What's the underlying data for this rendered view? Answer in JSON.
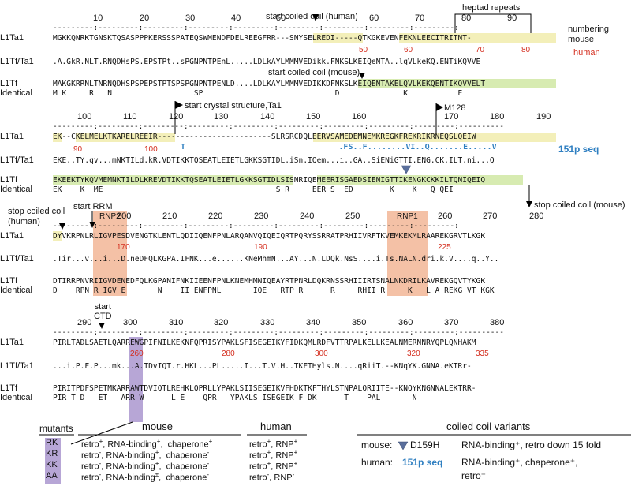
{
  "blocks": [
    {
      "ruler_numbers": [
        "10",
        "20",
        "30",
        "40",
        "50",
        "60",
        "70",
        "80",
        "90"
      ],
      "ruler_line": "---------:---------:---------:---------:---------:---------:---------:---------:---------:",
      "numbering_mouse": "numbering\nmouse",
      "human_label": "human",
      "rows": [
        {
          "label": "L1Ta1",
          "seq": "MGKKQNRKTGNSKTQSASPPPKERSSSPATEQSWMENDFDELREEGFRR---SNYSELREDI-----QTKGKEVENFEKNLEECITRITNT-"
        },
        {
          "label": "L1Tf/Ta1",
          "seq": ".A.GkR.NLT.RNQDHsPS.EPSTPt..sPGNPNTPEnL.....LDLkAYLMMMVEDikk.FNKSLKEIQeNTA..lqVLkeKQ.ENTiKQVVE"
        },
        {
          "label": "L1Tf",
          "seq": "MAKGKRRNLTNRNQDHSPSPEPSTPTSPSPGNPNTPENLD....LDLKAYLMMMVEDIKKDFNKSLKEIQENTAKELQVLKEKQENTIKQVVELT"
        },
        {
          "label": "Identical",
          "seq": "M K     R   N                  SP                             D              K           E"
        }
      ],
      "red_numbers": [
        "50",
        "60",
        "70",
        "80"
      ],
      "annotations": {
        "coil_human": "start coiled coil (human)",
        "coil_mouse": "start coiled coil (mouse)",
        "heptad": "heptad repeats"
      }
    },
    {
      "ruler_numbers": [
        "100",
        "110",
        "120",
        "130",
        "140",
        "150",
        "160",
        "170",
        "180",
        "190"
      ],
      "ruler_line": "---------:---------:---------:---------:---------:---------:---------:---------:---------:----------",
      "rows": [
        {
          "label": "L1Ta1",
          "seq": "EK--CKELMELKTKARELREEIR-------------------------SLRSRCDQLEERVSAMEDEMNEMKREGKFREKRIKRNEQSLQEIW"
        },
        {
          "label": "L1Tf/Ta1",
          "seq": "EKE..TY.qv...mNKTILd.kR.VDTIKKTQSEATLEIETLGKKSGTIDL.iSn.IQem...i..GA..SiENiGTTI.ENG.CK.ILT.ni...Q"
        },
        {
          "label": "L1Tf",
          "seq": "EKEEKTYKQVMEMNKTILDLKREVDTIKKTQSEATLEIETLGKKSGTIDLSISNRIQEMEERISGAEDSIENIGTTIKENGKCKKILTQNIQEIQ"
        },
        {
          "label": "Identical",
          "seq": "EK    K  ME                                      S R     EER S  ED        K    K   Q QEI"
        }
      ],
      "red_numbers": [
        "90",
        "100"
      ],
      "blue_seq": "T                                .FS..F........VI..Q.......E.....V",
      "seq_151p_label": "151p seq",
      "annotations": {
        "crystal": "start crystal structure,Ta1",
        "m128": "M128",
        "stop_mouse": "stop coiled coil (mouse)"
      }
    },
    {
      "ruler_numbers": [
        "200",
        "210",
        "220",
        "230",
        "240",
        "250",
        "260",
        "270",
        "280"
      ],
      "ruler_line": "---------:---------:---------:---------:---------:---------:---------:---------:---------:",
      "rows": [
        {
          "label": "L1Ta1",
          "seq": "DYVKRPNLRLIGVPESDVENGTKLENTLQDIIQENFPNLARQANVQIQEIQRTPQRYSSRRATPRHIIVRFTKVEMKEKMLRAAREKGRVTLKGK"
        },
        {
          "label": "L1Tf/Ta1",
          "seq": ".Tir...v...i...D.neDFQLKGPA.IFNK...e......KNeMhmN...AY...N.LDQk.NsS....i.Ts.NALN.dri.k.V....q..Y.."
        },
        {
          "label": "L1Tf",
          "seq": "DTIRRPNVRIIGVDENEDFQLKGPANIFNKIIEENFPNLKNEMHMNIQEAYRTPNRLDQKRNSSRHIIIRTSNALNKDRILKAVREKGQVTYKGK"
        },
        {
          "label": "Identical",
          "seq": "D    RPN R IGV E       N    II ENFPNL       IQE   RTP R      R     RHII R     K   L A REKG VT KGK"
        }
      ],
      "red_numbers": [
        "170",
        "190",
        "225"
      ],
      "annotations": {
        "stop_human": "stop coiled coil\n(human)",
        "start_rrm": "start RRM",
        "rnp2": "RNP2",
        "rnp1": "RNP1"
      }
    },
    {
      "ruler_numbers": [
        "290",
        "300",
        "310",
        "320",
        "330",
        "340",
        "350",
        "360",
        "370",
        "380"
      ],
      "ruler_line": "---------:---------:---------:---------:---------:---------:---------:---------:---------:----------",
      "rows": [
        {
          "label": "L1Ta1",
          "seq": "PIRLTADLSAETLQARREWGPIFNILKEKNFQPRISYPAKLSFISEGEIKYFIDKQMLRDFVTTRPALKELLKEALNMERNNRYQPLQNHAKM"
        },
        {
          "label": "L1Tf/Ta1",
          "seq": "...i.P.F.P...mk...A.TDvIQT.r.HKL...PL.....I...T.V.H..TKFTHyls.N....qRiiT.--KNqYK.GNNA.eKTRr-"
        },
        {
          "label": "L1Tf",
          "seq": "PIRITPDFSPETMKARRAWTDVIQTLREHKLQPRLLYPAKLSIISEGEIKVFHDKTKFTHYLSTNPALQRIITE--KNQYKNGNNALEKTRR-"
        },
        {
          "label": "Identical",
          "seq": "PIR T D   ET   ARR W      L E    QPR   YPAKLS ISEGEIK F DK      T    PAL       N"
        }
      ],
      "red_numbers": [
        "260",
        "280",
        "300",
        "320",
        "335"
      ],
      "annotations": {
        "start_ctd": "start\nCTD"
      }
    }
  ],
  "mutants_table": {
    "header_mutants": "mutants",
    "header_mouse": "mouse",
    "header_human": "human",
    "mutants": [
      "RK",
      "KR",
      "KK",
      "AA"
    ],
    "mouse": [
      {
        "a": "retro",
        "as": "+",
        "b": ", RNA-binding",
        "bs": "+",
        "c": ",  chaperone",
        "cs": "+"
      },
      {
        "a": "retro",
        "as": "-",
        "b": ", RNA-binding",
        "bs": "+",
        "c": ",  chaperone",
        "cs": "-"
      },
      {
        "a": "retro",
        "as": "-",
        "b": ", RNA-binding",
        "bs": "+",
        "c": ",  chaperone",
        "cs": "-"
      },
      {
        "a": "retro",
        "as": "-",
        "b": ", RNA-binding",
        "bs": "±",
        "c": ",  chaperone",
        "cs": "-"
      }
    ],
    "human": [
      {
        "a": "retro",
        "as": "+",
        "b": ", RNP",
        "bs": "+"
      },
      {
        "a": "retro",
        "as": "+",
        "b": ", RNP",
        "bs": "+"
      },
      {
        "a": "retro",
        "as": "+",
        "b": ", RNP",
        "bs": "+"
      },
      {
        "a": "retro",
        "as": "-",
        "b": ", RNP",
        "bs": "-"
      }
    ]
  },
  "coiled_coil_variants": {
    "title": "coiled coil variants",
    "mouse_label": "mouse:",
    "mouse_variant": "D159H",
    "mouse_desc": "RNA-binding⁺, retro down 15 fold",
    "human_label": "human:",
    "human_variant": "151p seq",
    "human_desc1": "RNA-binding⁺, chaperone⁺,",
    "human_desc2": "retro⁻"
  },
  "colors": {
    "yellow": "#f3efb9",
    "green": "#d7ebb1",
    "salmon": "#f4c1a6",
    "purple": "#b7a6d6",
    "red": "#d42e1f",
    "blue": "#2f7fc1",
    "triangle": "#5a6f9c"
  }
}
